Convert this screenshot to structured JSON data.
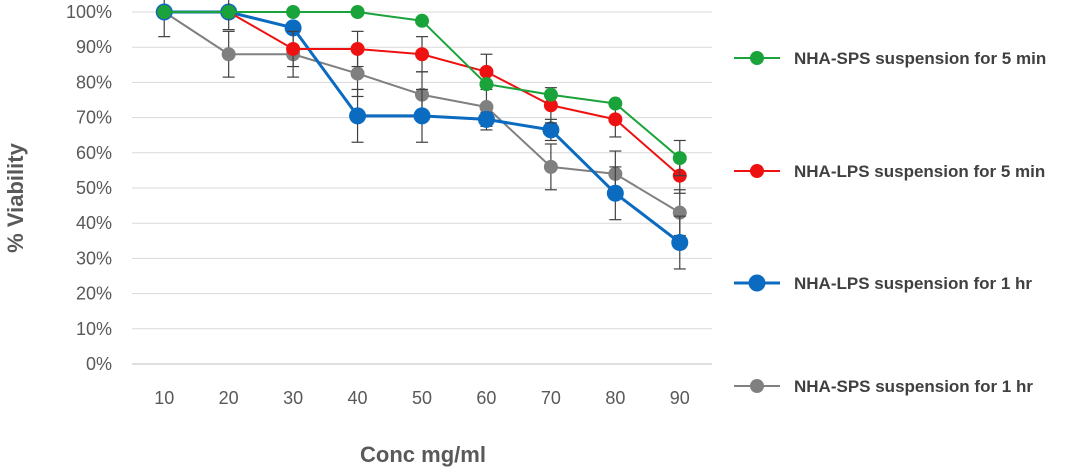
{
  "chart_data": {
    "type": "line",
    "title": "",
    "xlabel": "Conc mg/ml",
    "ylabel": "% Viability",
    "categories": [
      "10",
      "20",
      "30",
      "40",
      "50",
      "60",
      "70",
      "80",
      "90"
    ],
    "ylim": [
      0,
      100
    ],
    "yticks": [
      "0%",
      "10%",
      "20%",
      "30%",
      "40%",
      "50%",
      "60%",
      "70%",
      "80%",
      "90%",
      "100%"
    ],
    "grid": true,
    "legend_position": "right",
    "series": [
      {
        "name": "NHA-SPS suspension for 5 min",
        "color": "#1aa33b",
        "values": [
          100,
          100,
          100,
          100,
          97.5,
          79.5,
          76.5,
          74,
          58.5
        ],
        "errors": [
          0,
          0,
          0,
          0,
          0,
          0,
          0,
          0,
          5
        ]
      },
      {
        "name": "NHA-LPS suspension for 5 min",
        "color": "#ee1111",
        "values": [
          100,
          100,
          89.5,
          89.5,
          88,
          83,
          73.5,
          69.5,
          53.5
        ],
        "errors": [
          0,
          5,
          5,
          5,
          5,
          5,
          5,
          5,
          5
        ]
      },
      {
        "name": "NHA-LPS suspension for 1 hr",
        "color": "#0b6bc0",
        "values": [
          100,
          100,
          95.5,
          70.5,
          70.5,
          69.5,
          66.5,
          48.5,
          34.5
        ],
        "errors": [
          0,
          0,
          0,
          7.5,
          7.5,
          2,
          3,
          7.5,
          7.5
        ]
      },
      {
        "name": "NHA-SPS suspension for 1 hr",
        "color": "#808080",
        "values": [
          100,
          88,
          88,
          82.5,
          76.5,
          73,
          56,
          54,
          43
        ],
        "errors": [
          7,
          6.5,
          6.5,
          6.5,
          6.5,
          6.5,
          6.5,
          6.5,
          6.5
        ]
      }
    ]
  }
}
